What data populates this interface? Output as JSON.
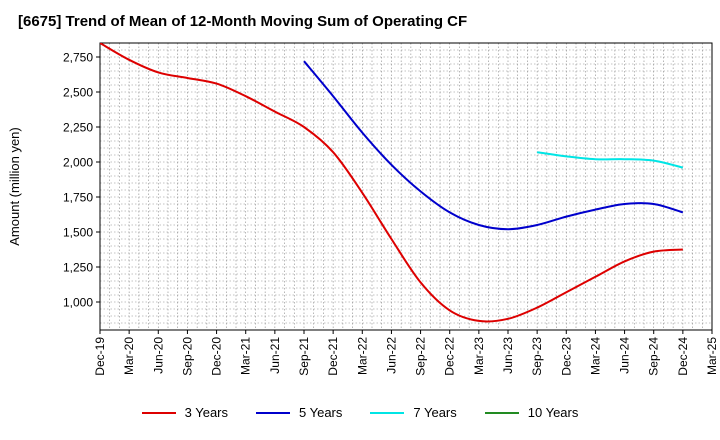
{
  "chart_data": {
    "type": "line",
    "title": "[6675]  Trend of Mean of 12-Month Moving Sum of Operating CF",
    "xlabel": "",
    "ylabel": "Amount (million yen)",
    "ylim": [
      800,
      2850
    ],
    "yticks": [
      1000,
      1250,
      1500,
      1750,
      2000,
      2250,
      2500,
      2750
    ],
    "ytick_labels": [
      "1,000",
      "1,250",
      "1,500",
      "1,750",
      "2,000",
      "2,250",
      "2,500",
      "2,750"
    ],
    "x_categories": [
      "Dec-19",
      "Mar-20",
      "Jun-20",
      "Sep-20",
      "Dec-20",
      "Mar-21",
      "Jun-21",
      "Sep-21",
      "Dec-21",
      "Mar-22",
      "Jun-22",
      "Sep-22",
      "Dec-22",
      "Mar-23",
      "Jun-23",
      "Sep-23",
      "Dec-23",
      "Mar-24",
      "Jun-24",
      "Sep-24",
      "Dec-24",
      "Mar-25"
    ],
    "grid": true,
    "legend_position": "bottom",
    "series": [
      {
        "name": "3 Years",
        "color": "#dd0000",
        "start_index": 0,
        "values": [
          2850,
          2730,
          2640,
          2600,
          2560,
          2470,
          2360,
          2250,
          2070,
          1780,
          1450,
          1140,
          940,
          865,
          880,
          960,
          1070,
          1180,
          1290,
          1360,
          1375
        ]
      },
      {
        "name": "5 Years",
        "color": "#0000cc",
        "start_index": 7,
        "values": [
          2720,
          2470,
          2210,
          1980,
          1790,
          1640,
          1550,
          1520,
          1550,
          1610,
          1660,
          1700,
          1700,
          1640
        ]
      },
      {
        "name": "7 Years",
        "color": "#00e5e5",
        "start_index": 15,
        "values": [
          2070,
          2040,
          2020,
          2020,
          2010,
          1960
        ]
      },
      {
        "name": "10 Years",
        "color": "#228b22",
        "start_index": 0,
        "values": []
      }
    ]
  }
}
